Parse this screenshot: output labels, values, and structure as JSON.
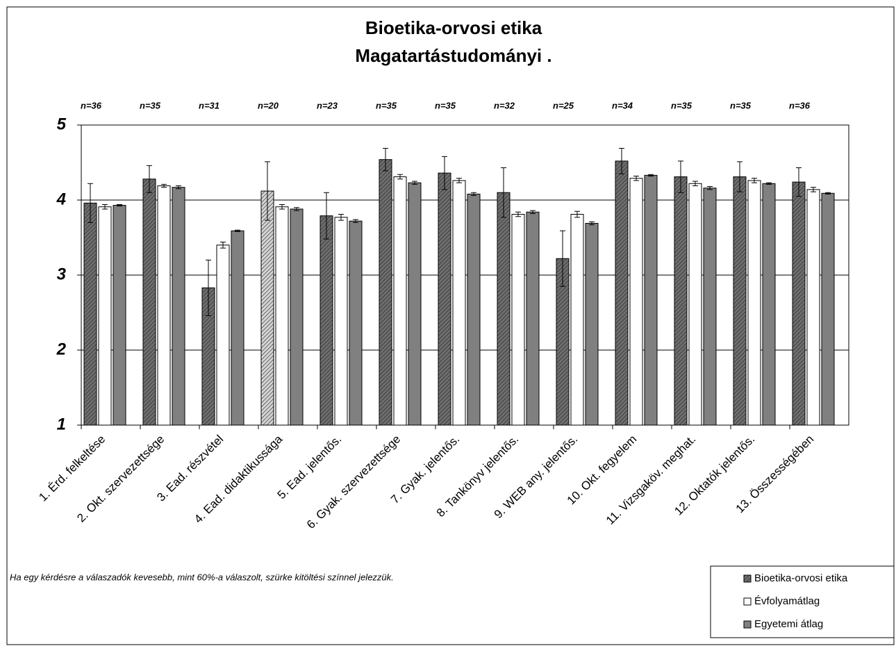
{
  "chart_data": {
    "type": "bar",
    "title_lines": [
      "Bioetika-orvosi etika",
      "Magatartástudományi ."
    ],
    "note": "Ha egy kérdésre a válaszadók kevesebb, mint 60%-a válaszolt, szürke kitöltési színnel jelezzük.",
    "categories": [
      "1. Érd. felkeltése",
      "2. Okt. szervezettsége",
      "3. Ead. részvétel",
      "4. Ead. didaktikussága",
      "5. Ead. jelentős.",
      "6. Gyak. szervezettsége",
      "7. Gyak. jelentős.",
      "8. Tankönyv jelentős.",
      "9. WEB any. jelentős.",
      "10. Okt. fegyelem",
      "11. Vizsgaköv. meghat.",
      "12. Oktatók jelentős.",
      "13. Összességében"
    ],
    "n_labels": [
      "n=36",
      "n=35",
      "n=31",
      "n=20",
      "n=23",
      "n=35",
      "n=35",
      "n=32",
      "n=25",
      "n=34",
      "n=35",
      "n=35",
      "n=36"
    ],
    "series": [
      {
        "name": "Bioetika-orvosi etika",
        "color": "#6e6e6e",
        "hatched": true,
        "point_colors": [
          "#6e6e6e",
          "#6e6e6e",
          "#6e6e6e",
          "#d4d4d4",
          "#6e6e6e",
          "#6e6e6e",
          "#6e6e6e",
          "#6e6e6e",
          "#6e6e6e",
          "#6e6e6e",
          "#6e6e6e",
          "#6e6e6e",
          "#6e6e6e"
        ],
        "values": [
          3.96,
          4.28,
          2.83,
          4.12,
          3.79,
          4.54,
          4.36,
          4.1,
          3.22,
          4.52,
          4.31,
          4.31,
          4.24
        ],
        "errors": [
          0.26,
          0.18,
          0.37,
          0.39,
          0.31,
          0.15,
          0.22,
          0.33,
          0.37,
          0.17,
          0.21,
          0.2,
          0.19
        ]
      },
      {
        "name": "Évfolyamátlag",
        "color": "#ffffff",
        "hatched": false,
        "values": [
          3.91,
          4.19,
          3.4,
          3.91,
          3.77,
          4.31,
          4.26,
          3.81,
          3.81,
          4.29,
          4.22,
          4.26,
          4.14
        ],
        "errors": [
          0.03,
          0.02,
          0.04,
          0.03,
          0.04,
          0.03,
          0.03,
          0.03,
          0.04,
          0.03,
          0.03,
          0.03,
          0.03
        ]
      },
      {
        "name": "Egyetemi átlag",
        "color": "#808080",
        "hatched": false,
        "values": [
          3.93,
          4.17,
          3.59,
          3.88,
          3.72,
          4.23,
          4.08,
          3.84,
          3.69,
          4.33,
          4.16,
          4.22,
          4.09
        ],
        "errors": [
          0.01,
          0.02,
          0.01,
          0.02,
          0.02,
          0.02,
          0.02,
          0.02,
          0.02,
          0.01,
          0.02,
          0.01,
          0.01
        ]
      }
    ],
    "ylim": [
      1,
      5
    ],
    "yticks": [
      1,
      2,
      3,
      4,
      5
    ],
    "grid": true,
    "legend": "bottom-right"
  }
}
